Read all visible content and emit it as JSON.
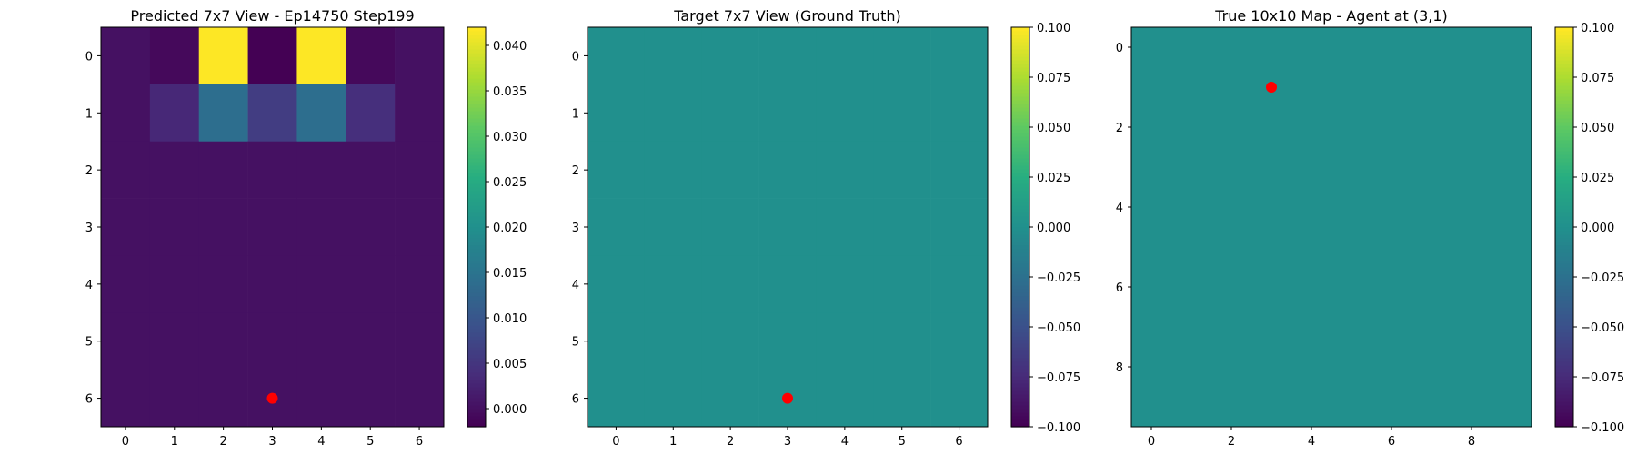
{
  "chart_data": [
    {
      "type": "heatmap",
      "title": "Predicted 7x7 View - Ep14750 Step199",
      "x_ticks": [
        "0",
        "1",
        "2",
        "3",
        "4",
        "5",
        "6"
      ],
      "y_ticks": [
        "0",
        "1",
        "2",
        "3",
        "4",
        "5",
        "6"
      ],
      "xlim": [
        -0.5,
        6.5
      ],
      "ylim": [
        6.5,
        -0.5
      ],
      "values": [
        [
          0.0,
          -0.001,
          0.042,
          -0.002,
          0.042,
          -0.001,
          0.0
        ],
        [
          0.0,
          0.003,
          0.014,
          0.006,
          0.014,
          0.004,
          0.0
        ],
        [
          0.0,
          0.0,
          0.0,
          0.0,
          0.0,
          0.0,
          0.0
        ],
        [
          0.0,
          0.0,
          0.0,
          0.0,
          0.0,
          0.0,
          0.0
        ],
        [
          0.0,
          0.0,
          0.0,
          0.0,
          0.0,
          0.0,
          0.0
        ],
        [
          0.0,
          0.0,
          0.0,
          0.0,
          0.0,
          0.0,
          0.0
        ],
        [
          0.0,
          0.0,
          0.0,
          0.0,
          0.0,
          0.0,
          0.0
        ]
      ],
      "colormap": "viridis",
      "color_range": [
        -0.002,
        0.042
      ],
      "colorbar_ticks": [
        "0.000",
        "0.005",
        "0.010",
        "0.015",
        "0.020",
        "0.025",
        "0.030",
        "0.035",
        "0.040"
      ],
      "colorbar_tick_values": [
        0.0,
        0.005,
        0.01,
        0.015,
        0.02,
        0.025,
        0.03,
        0.035,
        0.04
      ],
      "marker": {
        "x": 3,
        "y": 6,
        "color": "#ff0000"
      }
    },
    {
      "type": "heatmap",
      "title": "Target 7x7 View (Ground Truth)",
      "x_ticks": [
        "0",
        "1",
        "2",
        "3",
        "4",
        "5",
        "6"
      ],
      "y_ticks": [
        "0",
        "1",
        "2",
        "3",
        "4",
        "5",
        "6"
      ],
      "xlim": [
        -0.5,
        6.5
      ],
      "ylim": [
        6.5,
        -0.5
      ],
      "values": [
        [
          0,
          0,
          0,
          0,
          0,
          0,
          0
        ],
        [
          0,
          0,
          0,
          0,
          0,
          0,
          0
        ],
        [
          0,
          0,
          0,
          0,
          0,
          0,
          0
        ],
        [
          0,
          0,
          0,
          0,
          0,
          0,
          0
        ],
        [
          0,
          0,
          0,
          0,
          0,
          0,
          0
        ],
        [
          0,
          0,
          0,
          0,
          0,
          0,
          0
        ],
        [
          0,
          0,
          0,
          0,
          0,
          0,
          0
        ]
      ],
      "colormap": "viridis",
      "color_range": [
        -0.1,
        0.1
      ],
      "colorbar_ticks": [
        "−0.100",
        "−0.075",
        "−0.050",
        "−0.025",
        "0.000",
        "0.025",
        "0.050",
        "0.075",
        "0.100"
      ],
      "colorbar_tick_values": [
        -0.1,
        -0.075,
        -0.05,
        -0.025,
        0,
        0.025,
        0.05,
        0.075,
        0.1
      ],
      "marker": {
        "x": 3,
        "y": 6,
        "color": "#ff0000"
      }
    },
    {
      "type": "heatmap",
      "title": "True 10x10 Map - Agent at (3,1)",
      "x_ticks": [
        "0",
        "2",
        "4",
        "6",
        "8"
      ],
      "x_tick_values": [
        0,
        2,
        4,
        6,
        8
      ],
      "y_ticks": [
        "0",
        "2",
        "4",
        "6",
        "8"
      ],
      "y_tick_values": [
        0,
        2,
        4,
        6,
        8
      ],
      "xlim": [
        -0.5,
        9.5
      ],
      "ylim": [
        9.5,
        -0.5
      ],
      "grid_size": 10,
      "uniform_value": 0,
      "colormap": "viridis",
      "color_range": [
        -0.1,
        0.1
      ],
      "colorbar_ticks": [
        "−0.100",
        "−0.075",
        "−0.050",
        "−0.025",
        "0.000",
        "0.025",
        "0.050",
        "0.075",
        "0.100"
      ],
      "colorbar_tick_values": [
        -0.1,
        -0.075,
        -0.05,
        -0.025,
        0,
        0.025,
        0.05,
        0.075,
        0.1
      ],
      "marker": {
        "x": 3,
        "y": 1,
        "color": "#ff0000"
      }
    }
  ]
}
